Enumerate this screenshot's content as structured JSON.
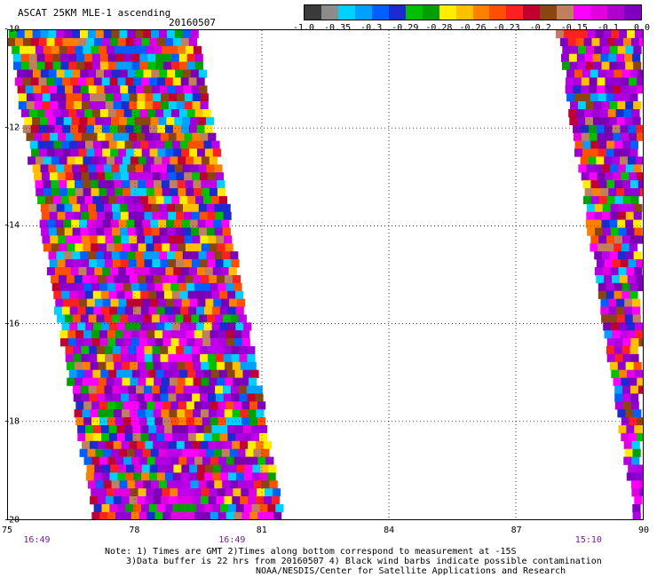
{
  "header": {
    "title": "ASCAT 25KM MLE-1 ascending",
    "date": "20160507"
  },
  "legend": {
    "colors": [
      "#3a3a3a",
      "#8c8c8c",
      "#00d0ff",
      "#00a0ff",
      "#0060ff",
      "#1a2bd0",
      "#00c000",
      "#00a000",
      "#ffee00",
      "#ffc000",
      "#ff8000",
      "#ff5000",
      "#ff2020",
      "#c00030",
      "#8b4513",
      "#c08060",
      "#ff00ff",
      "#e000e0",
      "#b000d0",
      "#8000c0"
    ],
    "labels": [
      "-1.0",
      "-0.35",
      "-0.3",
      "-0.29",
      "-0.28",
      "-0.26",
      "-0.23",
      "-0.2",
      "-0.15",
      "-0.1",
      "0.0"
    ]
  },
  "axes": {
    "y_ticks": [
      "-10",
      "-12",
      "-14",
      "-16",
      "-18",
      "-20"
    ],
    "x_ticks": [
      "75",
      "78",
      "81",
      "84",
      "87",
      "90"
    ],
    "time_labels": [
      {
        "lon": 75.7,
        "label": "16:49"
      },
      {
        "lon": 80.3,
        "label": "16:49"
      },
      {
        "lon": 88.7,
        "label": "15:10"
      }
    ]
  },
  "footer": {
    "note1": "Note: 1) Times are GMT 2)Times along bottom correspond to measurement at -15S",
    "note2": "3)Data buffer is 22 hrs from 20160507 4) Black wind barbs indicate possible contamination",
    "note3": "NOAA/NESDIS/Center for Satellite Applications and Research"
  },
  "map": {
    "lon_range": [
      75,
      90
    ],
    "lat_range": [
      -20,
      -10
    ],
    "swaths": [
      {
        "name": "west-pass",
        "lon_west_at_top": 75.0,
        "lon_east_at_top": 79.4,
        "lon_west_at_bottom": 77.0,
        "lon_east_at_bottom": 81.3
      },
      {
        "name": "east-pass",
        "lon_west_at_top": 88.0,
        "lon_east_at_top": 89.9,
        "lon_west_at_bottom": 89.8,
        "lon_east_at_bottom": 89.9
      }
    ]
  }
}
